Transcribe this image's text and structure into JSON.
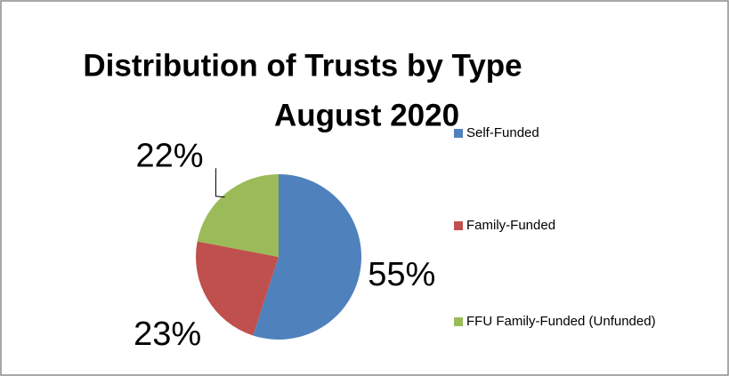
{
  "chart_data": {
    "type": "pie",
    "title": "Distribution of Trusts by Type",
    "subtitle": "August 2020",
    "categories": [
      "Self-Funded",
      "Family-Funded",
      "FFU Family-Funded (Unfunded)"
    ],
    "values": [
      55,
      23,
      22
    ],
    "value_labels": [
      "55%",
      "23%",
      "22%"
    ],
    "colors": [
      "#4f81bd",
      "#c0504d",
      "#9bbb59"
    ],
    "legend": "right"
  }
}
